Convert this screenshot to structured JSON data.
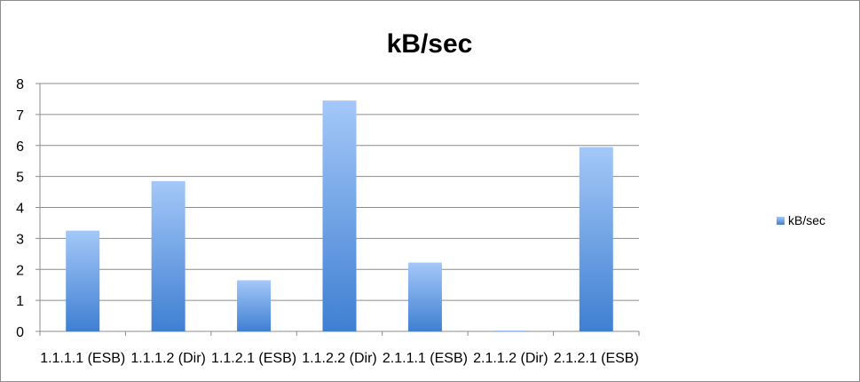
{
  "chart_data": {
    "type": "bar",
    "title": "kB/sec",
    "categories": [
      "1.1.1.1 (ESB)",
      "1.1.1.2 (Dir)",
      "1.1.2.1 (ESB)",
      "1.1.2.2 (Dir)",
      "2.1.1.1 (ESB)",
      "2.1.1.2 (Dir)",
      "2.1.2.1 (ESB)"
    ],
    "series": [
      {
        "name": "kB/sec",
        "values": [
          3.25,
          4.85,
          1.65,
          7.45,
          2.22,
          0.02,
          5.95
        ]
      }
    ],
    "xlabel": "",
    "ylabel": "",
    "ylim": [
      0,
      8
    ],
    "yticks": [
      "0",
      "1",
      "2",
      "3",
      "4",
      "5",
      "6",
      "7",
      "8"
    ],
    "grid": true,
    "legend": "right",
    "colors": {
      "bar_top": "#a4c8f8",
      "bar_bottom": "#3f7fd2",
      "grid": "#8c8c8c",
      "axis": "#8c8c8c"
    }
  }
}
